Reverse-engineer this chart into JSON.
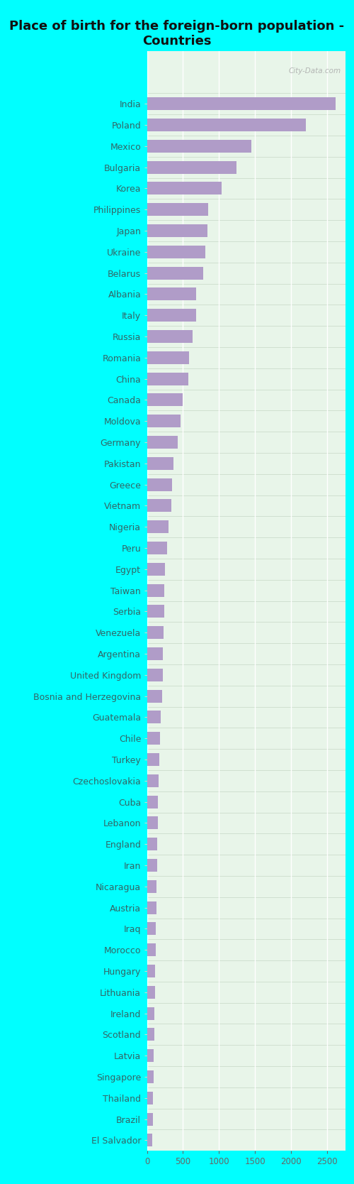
{
  "title": "Place of birth for the foreign-born population -\nCountries",
  "countries": [
    "India",
    "Poland",
    "Mexico",
    "Bulgaria",
    "Korea",
    "Philippines",
    "Japan",
    "Ukraine",
    "Belarus",
    "Albania",
    "Italy",
    "Russia",
    "Romania",
    "China",
    "Canada",
    "Moldova",
    "Germany",
    "Pakistan",
    "Greece",
    "Vietnam",
    "Nigeria",
    "Peru",
    "Egypt",
    "Taiwan",
    "Serbia",
    "Venezuela",
    "Argentina",
    "United Kingdom",
    "Bosnia and Herzegovina",
    "Guatemala",
    "Chile",
    "Turkey",
    "Czechoslovakia",
    "Cuba",
    "Lebanon",
    "England",
    "Iran",
    "Nicaragua",
    "Austria",
    "Iraq",
    "Morocco",
    "Hungary",
    "Lithuania",
    "Ireland",
    "Scotland",
    "Latvia",
    "Singapore",
    "Thailand",
    "Brazil",
    "El Salvador"
  ],
  "values": [
    2620,
    2200,
    1450,
    1240,
    1040,
    845,
    840,
    815,
    785,
    685,
    680,
    630,
    580,
    575,
    495,
    465,
    425,
    370,
    350,
    335,
    300,
    280,
    255,
    242,
    237,
    228,
    222,
    220,
    213,
    188,
    178,
    168,
    158,
    155,
    150,
    143,
    140,
    135,
    130,
    125,
    121,
    116,
    112,
    107,
    103,
    97,
    92,
    87,
    82,
    77
  ],
  "bar_color": "#b09cc8",
  "bg_color": "#00ffff",
  "plot_bg": "#e8f5e9",
  "xlim": [
    0,
    2750
  ],
  "xticks": [
    0,
    500,
    1000,
    1500,
    2000,
    2500
  ],
  "title_fontsize": 13,
  "label_fontsize": 9,
  "tick_fontsize": 8.5,
  "watermark": "City-Data.com",
  "bar_height": 0.6,
  "label_color": "#336666",
  "tick_color": "#666666",
  "grid_color": "#ffffff",
  "separator_color": "#ccddcc"
}
